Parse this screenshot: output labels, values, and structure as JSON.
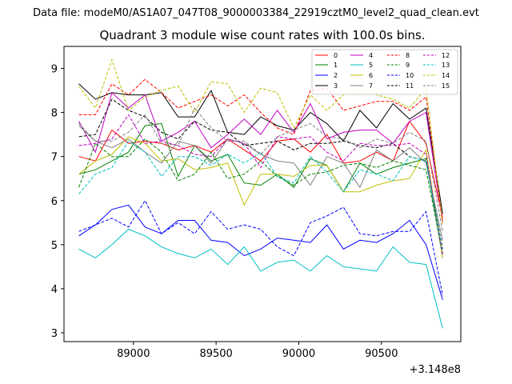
{
  "chart_data": {
    "type": "line",
    "suptitle": "Data file: modeM0/AS1A07_047T08_9000003384_22919cztM0_level2_quad_clean.evt",
    "title": "Quadrant 3 module wise count rates with 100.0s bins.",
    "xlabel": "",
    "ylabel": "",
    "offset_text": "+3.148e8",
    "xlim": [
      88580,
      90980
    ],
    "ylim": [
      2.8,
      9.5
    ],
    "xticks": [
      89000,
      89500,
      90000,
      90500
    ],
    "yticks": [
      3,
      4,
      5,
      6,
      7,
      8,
      9
    ],
    "grid": false,
    "legend_position": "top-right",
    "x": [
      88670,
      88770,
      88870,
      88970,
      89070,
      89170,
      89270,
      89370,
      89470,
      89570,
      89670,
      89770,
      89870,
      89970,
      90070,
      90170,
      90270,
      90370,
      90470,
      90570,
      90670,
      90770,
      90870
    ],
    "series": [
      {
        "name": "0",
        "color": "#ff0000",
        "dash": false,
        "values": [
          7.0,
          6.9,
          7.6,
          7.3,
          7.35,
          7.3,
          7.15,
          7.25,
          7.1,
          7.4,
          7.15,
          6.9,
          7.35,
          7.4,
          7.1,
          7.5,
          6.85,
          6.9,
          7.1,
          6.9,
          7.8,
          7.3,
          5.6
        ]
      },
      {
        "name": "1",
        "color": "#008000",
        "dash": false,
        "values": [
          6.6,
          6.7,
          6.9,
          7.1,
          7.7,
          7.75,
          6.55,
          7.25,
          6.9,
          7.05,
          6.4,
          6.35,
          6.6,
          6.3,
          6.95,
          6.8,
          6.2,
          6.85,
          6.6,
          6.75,
          6.85,
          6.95,
          4.7
        ]
      },
      {
        "name": "2",
        "color": "#0000ff",
        "dash": false,
        "values": [
          5.2,
          5.45,
          5.8,
          5.9,
          5.4,
          5.25,
          5.55,
          5.55,
          5.1,
          5.05,
          4.75,
          4.9,
          5.15,
          5.1,
          5.05,
          5.45,
          4.9,
          5.1,
          5.05,
          5.25,
          5.55,
          5.0,
          3.75
        ]
      },
      {
        "name": "3",
        "color": "#000000",
        "dash": false,
        "values": [
          8.65,
          8.3,
          8.45,
          8.4,
          8.4,
          8.45,
          7.9,
          7.9,
          8.5,
          7.55,
          7.5,
          7.9,
          7.7,
          7.6,
          8.0,
          7.75,
          7.35,
          8.05,
          7.65,
          8.2,
          7.85,
          8.1,
          5.7
        ]
      },
      {
        "name": "4",
        "color": "#c000c0",
        "dash": false,
        "values": [
          7.8,
          7.1,
          8.45,
          8.1,
          8.4,
          7.35,
          7.55,
          7.8,
          7.2,
          7.5,
          7.85,
          7.5,
          8.05,
          7.55,
          8.2,
          7.4,
          7.55,
          7.6,
          7.6,
          7.3,
          7.8,
          8.0,
          5.5
        ]
      },
      {
        "name": "5",
        "color": "#00c0c0",
        "dash": false,
        "values": [
          4.9,
          4.7,
          5.0,
          5.35,
          5.2,
          4.95,
          4.8,
          4.7,
          4.9,
          4.55,
          4.95,
          4.4,
          4.6,
          4.65,
          4.4,
          4.75,
          4.5,
          4.45,
          4.4,
          4.95,
          4.6,
          4.55,
          3.1
        ]
      },
      {
        "name": "6",
        "color": "#c0c000",
        "dash": false,
        "values": [
          6.6,
          6.9,
          7.05,
          7.45,
          7.3,
          6.9,
          6.95,
          6.7,
          6.75,
          6.85,
          5.9,
          6.6,
          6.6,
          6.55,
          6.8,
          6.8,
          6.2,
          6.2,
          6.35,
          6.45,
          6.5,
          7.15,
          4.7
        ]
      },
      {
        "name": "7",
        "color": "#808080",
        "dash": false,
        "values": [
          7.7,
          7.35,
          7.2,
          7.4,
          7.1,
          6.85,
          7.35,
          7.25,
          6.85,
          7.4,
          7.3,
          7.05,
          6.9,
          6.85,
          6.35,
          7.0,
          6.85,
          6.3,
          7.15,
          6.9,
          7.2,
          6.85,
          5.1
        ]
      },
      {
        "name": "8",
        "color": "#ff0000",
        "dash": true,
        "values": [
          7.95,
          7.95,
          8.65,
          8.4,
          8.75,
          8.45,
          8.1,
          8.25,
          8.4,
          8.15,
          8.4,
          8.0,
          7.65,
          7.5,
          8.5,
          8.55,
          8.05,
          8.15,
          8.25,
          8.25,
          8.05,
          8.35,
          5.5
        ]
      },
      {
        "name": "9",
        "color": "#008000",
        "dash": true,
        "values": [
          6.3,
          7.3,
          7.0,
          7.0,
          7.4,
          7.1,
          6.45,
          6.6,
          7.1,
          6.5,
          6.6,
          6.9,
          6.55,
          6.35,
          6.6,
          6.65,
          6.8,
          6.85,
          6.75,
          6.9,
          6.8,
          6.7,
          4.8
        ]
      },
      {
        "name": "10",
        "color": "#0000ff",
        "dash": true,
        "values": [
          5.3,
          5.45,
          5.6,
          5.4,
          6.0,
          5.25,
          5.5,
          5.25,
          5.75,
          5.35,
          5.45,
          5.35,
          4.95,
          4.75,
          5.5,
          5.65,
          5.85,
          5.25,
          5.2,
          5.3,
          5.3,
          5.75,
          3.85
        ]
      },
      {
        "name": "11",
        "color": "#000000",
        "dash": true,
        "values": [
          7.45,
          7.5,
          8.3,
          8.05,
          7.9,
          7.55,
          7.4,
          7.8,
          7.6,
          7.55,
          7.25,
          7.3,
          7.35,
          7.15,
          7.3,
          7.3,
          7.35,
          7.25,
          7.2,
          7.3,
          7.0,
          6.9,
          4.9
        ]
      },
      {
        "name": "12",
        "color": "#c000c0",
        "dash": true,
        "values": [
          7.25,
          7.3,
          7.4,
          7.95,
          7.3,
          7.35,
          7.25,
          7.05,
          7.0,
          7.4,
          7.3,
          6.75,
          7.45,
          7.4,
          7.45,
          7.1,
          6.9,
          7.3,
          7.25,
          7.25,
          7.3,
          7.05,
          4.75
        ]
      },
      {
        "name": "13",
        "color": "#00c0c0",
        "dash": true,
        "values": [
          6.15,
          6.6,
          6.75,
          7.35,
          7.1,
          6.55,
          7.0,
          7.0,
          6.8,
          7.05,
          6.85,
          7.1,
          6.55,
          6.4,
          7.0,
          6.65,
          6.2,
          6.7,
          6.6,
          6.45,
          7.0,
          6.9,
          4.85
        ]
      },
      {
        "name": "14",
        "color": "#c0c000",
        "dash": true,
        "values": [
          8.6,
          8.1,
          9.2,
          8.05,
          8.35,
          8.5,
          8.6,
          8.0,
          8.7,
          8.65,
          8.0,
          8.55,
          8.45,
          7.65,
          8.4,
          8.05,
          8.4,
          8.5,
          8.4,
          8.3,
          8.1,
          8.55,
          5.45
        ]
      },
      {
        "name": "15",
        "color": "#808080",
        "dash": true,
        "values": [
          7.75,
          7.35,
          7.35,
          7.55,
          7.95,
          7.3,
          7.25,
          8.1,
          7.65,
          7.35,
          7.35,
          7.05,
          7.45,
          7.6,
          7.75,
          7.45,
          7.4,
          7.2,
          7.4,
          7.3,
          7.55,
          7.35,
          5.3
        ]
      }
    ]
  }
}
